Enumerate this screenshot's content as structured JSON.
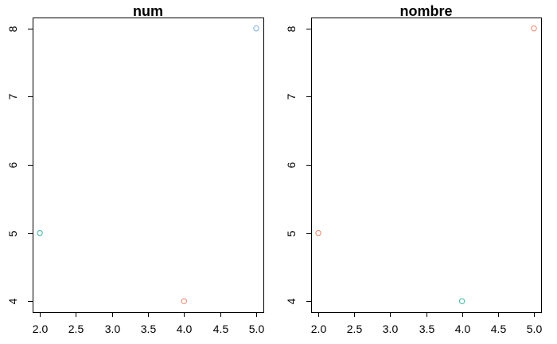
{
  "chart_data": [
    {
      "type": "scatter",
      "title": "num",
      "xlabel": "",
      "ylabel": "",
      "xlim": [
        1.9,
        5.1
      ],
      "ylim": [
        3.84,
        8.16
      ],
      "xticks": [
        "2.0",
        "2.5",
        "3.0",
        "3.5",
        "4.0",
        "4.5",
        "5.0"
      ],
      "yticks": [
        "4",
        "5",
        "6",
        "7",
        "8"
      ],
      "grid": false,
      "points": [
        {
          "x": 2.0,
          "y": 5,
          "color": "#3cb8a0"
        },
        {
          "x": 4.0,
          "y": 4,
          "color": "#e8856a"
        },
        {
          "x": 5.0,
          "y": 8,
          "color": "#7faedb"
        }
      ]
    },
    {
      "type": "scatter",
      "title": "nombre",
      "xlabel": "",
      "ylabel": "",
      "xlim": [
        1.9,
        5.1
      ],
      "ylim": [
        3.84,
        8.16
      ],
      "xticks": [
        "2.0",
        "2.5",
        "3.0",
        "3.5",
        "4.0",
        "4.5",
        "5.0"
      ],
      "yticks": [
        "4",
        "5",
        "6",
        "7",
        "8"
      ],
      "grid": false,
      "points": [
        {
          "x": 2.0,
          "y": 5,
          "color": "#e8856a"
        },
        {
          "x": 4.0,
          "y": 4,
          "color": "#3cb8a0"
        },
        {
          "x": 5.0,
          "y": 8,
          "color": "#e8856a"
        }
      ]
    }
  ]
}
